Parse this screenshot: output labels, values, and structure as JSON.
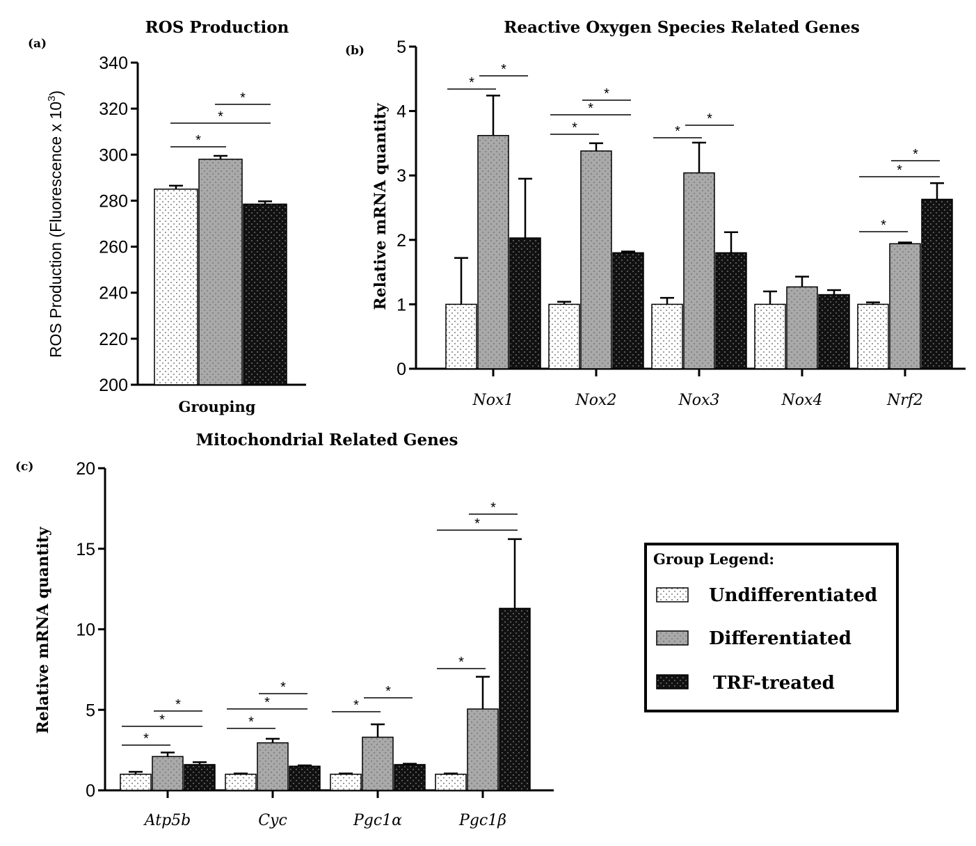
{
  "legend": {
    "title": "Group Legend:",
    "entries": [
      "Undifferentiated",
      "Differentiated",
      "TRF-treated"
    ]
  },
  "colors": {
    "undifferentiated": "#ffffff",
    "differentiated": "#a9a9a9",
    "trf": "#111111",
    "axis": "#000000"
  },
  "chart_data": [
    {
      "panel": "(a)",
      "type": "bar",
      "title": "ROS Production",
      "xlabel": "Grouping",
      "ylabel": "ROS Production (Fluorescence x 10",
      "ylabel_superscript": "3",
      "ylabel_close": ")",
      "ylim": [
        200,
        340
      ],
      "yticks": [
        200,
        220,
        240,
        260,
        280,
        300,
        320,
        340
      ],
      "categories": [
        ""
      ],
      "series": [
        {
          "name": "Undifferentiated",
          "values": [
            285
          ],
          "errors": [
            1.5
          ]
        },
        {
          "name": "Differentiated",
          "values": [
            298
          ],
          "errors": [
            1.5
          ]
        },
        {
          "name": "TRF-treated",
          "values": [
            278.5
          ],
          "errors": [
            1.2
          ]
        }
      ],
      "significance": [
        "*",
        "*",
        "*"
      ]
    },
    {
      "panel": "(b)",
      "type": "bar",
      "title": "Reactive Oxygen Species Related Genes",
      "xlabel": "",
      "ylabel": "Relative mRNA quantity",
      "ylim": [
        0,
        5
      ],
      "yticks": [
        0,
        1,
        2,
        3,
        4,
        5
      ],
      "categories": [
        "Nox1",
        "Nox2",
        "Nox3",
        "Nox4",
        "Nrf2"
      ],
      "series": [
        {
          "name": "Undifferentiated",
          "values": [
            1,
            1,
            1,
            1,
            1
          ],
          "errors": [
            0.72,
            0.04,
            0.1,
            0.2,
            0.03
          ]
        },
        {
          "name": "Differentiated",
          "values": [
            3.62,
            3.38,
            3.04,
            1.27,
            1.94
          ],
          "errors": [
            0.62,
            0.12,
            0.47,
            0.16,
            0.02
          ]
        },
        {
          "name": "TRF-treated",
          "values": [
            2.03,
            1.8,
            1.8,
            1.15,
            2.63
          ],
          "errors": [
            0.92,
            0.02,
            0.32,
            0.07,
            0.25
          ]
        }
      ],
      "significance": [
        "*",
        "*",
        "*",
        "*",
        "*",
        "*",
        "*",
        "*",
        "*",
        "*"
      ]
    },
    {
      "panel": "(c)",
      "type": "bar",
      "title": "Mitochondrial Related Genes",
      "xlabel": "",
      "ylabel": "Relative mRNA quantity",
      "ylim": [
        0,
        20
      ],
      "yticks": [
        0,
        5,
        10,
        15,
        20
      ],
      "categories": [
        "Atp5b",
        "Cyc",
        "Pgc1α",
        "Pgc1β"
      ],
      "series": [
        {
          "name": "Undifferentiated",
          "values": [
            1,
            1,
            1,
            1
          ],
          "errors": [
            0.15,
            0.05,
            0.05,
            0.05
          ]
        },
        {
          "name": "Differentiated",
          "values": [
            2.1,
            2.95,
            3.3,
            5.05
          ],
          "errors": [
            0.25,
            0.25,
            0.8,
            2
          ]
        },
        {
          "name": "TRF-treated",
          "values": [
            1.6,
            1.5,
            1.6,
            11.3
          ],
          "errors": [
            0.15,
            0.05,
            0.05,
            4.3
          ]
        }
      ],
      "significance": [
        "*",
        "*",
        "*",
        "*",
        "*",
        "*",
        "*",
        "*",
        "*",
        "*",
        "*"
      ]
    }
  ]
}
